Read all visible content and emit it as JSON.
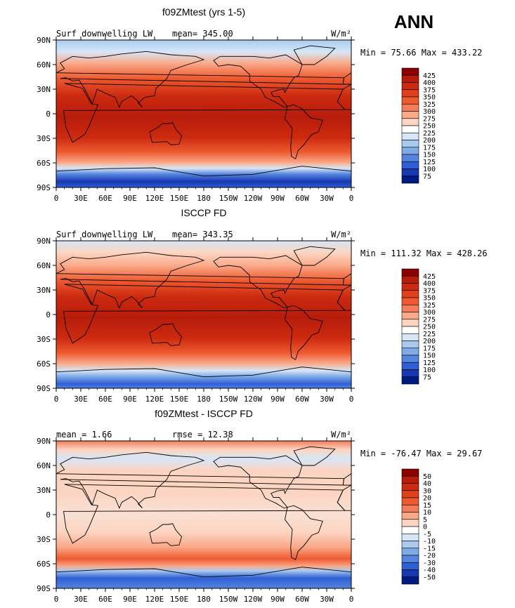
{
  "page": {
    "season_label": "ANN"
  },
  "chart_data": [
    {
      "type": "heatmap",
      "title": "f09ZMtest (yrs 1-5)",
      "left_label": "Surf downwelling LW",
      "center_label": "mean= 345.00",
      "units": "W/m²",
      "minmax_text": "Min =  75.66 Max = 433.22",
      "x_ticks": [
        "0",
        "30E",
        "60E",
        "90E",
        "120E",
        "150E",
        "180",
        "150W",
        "120W",
        "90W",
        "60W",
        "30W",
        "0"
      ],
      "y_ticks": [
        "90N",
        "60N",
        "30N",
        "0",
        "30S",
        "60S",
        "90S"
      ],
      "xlim": [
        0,
        360
      ],
      "ylim": [
        -90,
        90
      ],
      "colorbar": {
        "levels": [
          "425",
          "400",
          "375",
          "350",
          "325",
          "300",
          "275",
          "250",
          "225",
          "200",
          "175",
          "150",
          "125",
          "100",
          "75"
        ],
        "colors": [
          "#8b0000",
          "#b71c0b",
          "#cc2a0f",
          "#e0401a",
          "#ee5a30",
          "#f47c5a",
          "#f9a888",
          "#fcd5c2",
          "#ffffff",
          "#d6e6f7",
          "#aacbef",
          "#7faae6",
          "#5585de",
          "#2f5fd4",
          "#1738b0",
          "#001a80"
        ]
      }
    },
    {
      "type": "heatmap",
      "title": "ISCCP FD",
      "left_label": "Surf downwelling LW",
      "center_label": "mean= 343.35",
      "units": "W/m²",
      "minmax_text": "Min = 111.32 Max = 428.26",
      "x_ticks": [
        "0",
        "30E",
        "60E",
        "90E",
        "120E",
        "150E",
        "180",
        "150W",
        "120W",
        "90W",
        "60W",
        "30W",
        "0"
      ],
      "y_ticks": [
        "90N",
        "60N",
        "30N",
        "0",
        "30S",
        "60S",
        "90S"
      ],
      "xlim": [
        0,
        360
      ],
      "ylim": [
        -90,
        90
      ],
      "colorbar": {
        "levels": [
          "425",
          "400",
          "375",
          "350",
          "325",
          "300",
          "275",
          "250",
          "225",
          "200",
          "175",
          "150",
          "125",
          "100",
          "75"
        ],
        "colors": [
          "#8b0000",
          "#b71c0b",
          "#cc2a0f",
          "#e0401a",
          "#ee5a30",
          "#f47c5a",
          "#f9a888",
          "#fcd5c2",
          "#ffffff",
          "#d6e6f7",
          "#aacbef",
          "#7faae6",
          "#5585de",
          "#2f5fd4",
          "#1738b0",
          "#001a80"
        ]
      }
    },
    {
      "type": "heatmap",
      "title": "f09ZMtest - ISCCP FD",
      "left_label": "mean =    1.66",
      "center_label": "rmse =   12.38",
      "units": "W/m²",
      "minmax_text": "Min = -76.47 Max =  29.67",
      "x_ticks": [
        "0",
        "30E",
        "60E",
        "90E",
        "120E",
        "150E",
        "180",
        "150W",
        "120W",
        "90W",
        "60W",
        "30W",
        "0"
      ],
      "y_ticks": [
        "90N",
        "60N",
        "30N",
        "0",
        "30S",
        "60S",
        "90S"
      ],
      "xlim": [
        0,
        360
      ],
      "ylim": [
        -90,
        90
      ],
      "colorbar": {
        "levels": [
          "50",
          "40",
          "30",
          "20",
          "15",
          "10",
          "5",
          "0",
          "-5",
          "-10",
          "-15",
          "-20",
          "-30",
          "-40",
          "-50"
        ],
        "colors": [
          "#8b0000",
          "#b71c0b",
          "#cc2a0f",
          "#e0401a",
          "#ee5a30",
          "#f47c5a",
          "#f9a888",
          "#fcd5c2",
          "#ffffff",
          "#d6e6f7",
          "#aacbef",
          "#7faae6",
          "#5585de",
          "#2f5fd4",
          "#1738b0",
          "#001a80"
        ]
      }
    }
  ]
}
